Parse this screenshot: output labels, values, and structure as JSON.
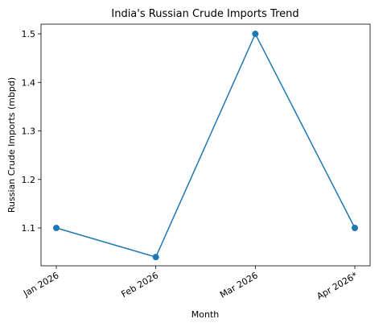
{
  "chart_data": {
    "type": "line",
    "title": "India's Russian Crude Imports Trend",
    "x_label": "Month",
    "y_label": "Russian Crude Imports (mbpd)",
    "categories": [
      "Jan 2026",
      "Feb 2026",
      "Mar 2026",
      "Apr 2026*"
    ],
    "series": [
      {
        "color": "#1f77b4",
        "values": [
          1.1,
          1.04,
          1.5,
          1.1
        ]
      }
    ],
    "ylim": [
      1.022,
      1.52
    ],
    "yticks": [
      1.1,
      1.2,
      1.3,
      1.4,
      1.5
    ],
    "grid": false
  }
}
